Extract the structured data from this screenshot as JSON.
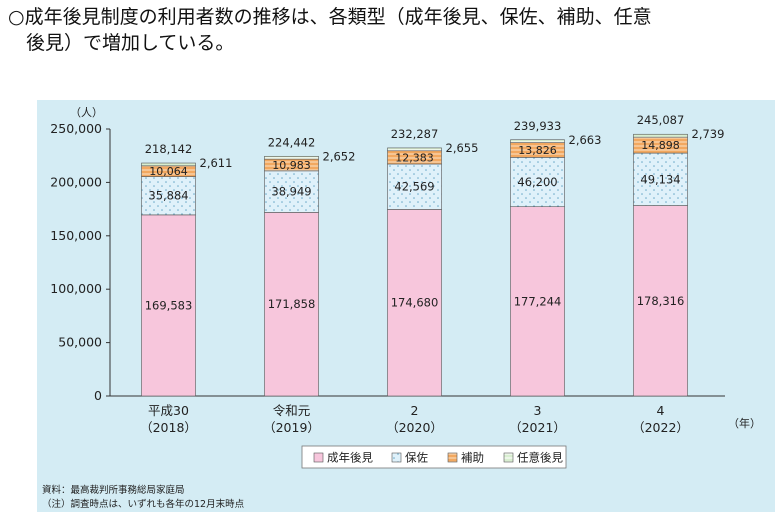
{
  "headline": {
    "line1": "○成年後見制度の利用者数の推移は、各類型（成年後見、保佐、補助、任意",
    "line2": "後見）で増加している。"
  },
  "chart_data": {
    "type": "bar",
    "stacked": true,
    "y_unit": "（人）",
    "ylim": [
      0,
      250000
    ],
    "yticks": [
      "0",
      "50,000",
      "100,000",
      "150,000",
      "200,000",
      "250,000"
    ],
    "ytick_values": [
      0,
      50000,
      100000,
      150000,
      200000,
      250000
    ],
    "x_unit": "（年）",
    "categories": [
      {
        "era": "平成30",
        "year": "（2018）"
      },
      {
        "era": "令和元",
        "year": "（2019）"
      },
      {
        "era": "2",
        "year": "（2020）"
      },
      {
        "era": "3",
        "year": "（2021）"
      },
      {
        "era": "4",
        "year": "（2022）"
      }
    ],
    "series": [
      {
        "name": "成年後見",
        "values": [
          169583,
          171858,
          174680,
          177244,
          178316
        ],
        "labels": [
          "169,583",
          "171,858",
          "174,680",
          "177,244",
          "178,316"
        ],
        "color": "#f7c6dc"
      },
      {
        "name": "保佐",
        "values": [
          35884,
          38949,
          42569,
          46200,
          49134
        ],
        "labels": [
          "35,884",
          "38,949",
          "42,569",
          "46,200",
          "49,134"
        ],
        "color": "#dff1fa"
      },
      {
        "name": "補助",
        "values": [
          10064,
          10983,
          12383,
          13826,
          14898
        ],
        "labels": [
          "10,064",
          "10,983",
          "12,383",
          "13,826",
          "14,898"
        ],
        "color": "#f2a860"
      },
      {
        "name": "任意後見",
        "values": [
          2611,
          2652,
          2655,
          2663,
          2739
        ],
        "labels": [
          "2,611",
          "2,652",
          "2,655",
          "2,663",
          "2,739"
        ],
        "color": "#d8eed0"
      }
    ],
    "totals": [
      "218,142",
      "224,442",
      "232,287",
      "239,933",
      "245,087"
    ],
    "legend_position": "bottom-center",
    "grid": false
  },
  "source": {
    "line1": "資料：最高裁判所事務総局家庭局",
    "line2": "（注）調査時点は、いずれも各年の12月末時点"
  }
}
